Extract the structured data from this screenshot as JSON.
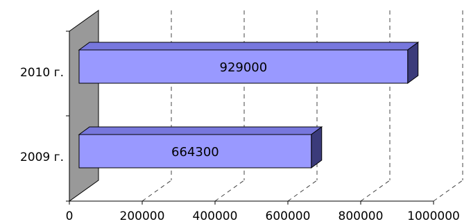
{
  "chart_data": {
    "type": "bar",
    "orientation": "horizontal",
    "three_d": true,
    "categories": [
      "2009 г.",
      "2010 г."
    ],
    "values": [
      664300,
      929000
    ],
    "data_labels": [
      "664300",
      "929000"
    ],
    "xlim": [
      0,
      1000000
    ],
    "x_ticks": [
      "0",
      "200000",
      "400000",
      "600000",
      "800000",
      "1000000"
    ],
    "grid": "dashed vertical",
    "legend": "none",
    "colors": {
      "bar_front": "#9999ff",
      "bar_top": "#7777dd",
      "bar_side": "#3b3b7a",
      "back_wall": "#999999",
      "grid": "#444444"
    }
  }
}
